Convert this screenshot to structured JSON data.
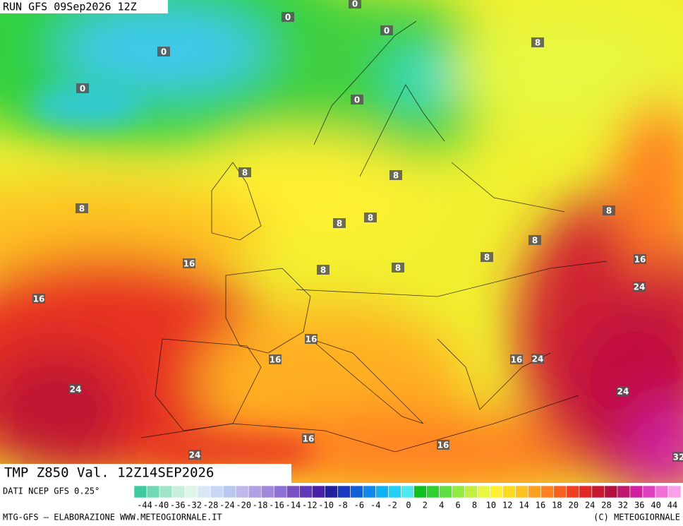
{
  "header": {
    "run": "RUN GFS 09Sep2026 12Z"
  },
  "map": {
    "contour_labels": [
      0,
      0,
      0,
      0,
      0,
      0,
      8,
      8,
      8,
      8,
      8,
      8,
      8,
      8,
      8,
      8,
      8,
      16,
      16,
      16,
      16,
      16,
      16,
      16,
      16,
      24,
      24,
      24,
      24,
      24,
      32
    ]
  },
  "footer": {
    "title": "TMP Z850 Val. 12Z14SEP2026",
    "source": "DATI NCEP GFS 0.25°",
    "credit_left": "MTG-GFS — ELABORAZIONE WWW.METEOGIORNALE.IT",
    "credit_right": "(C) METEOGIORNALE"
  },
  "legend": {
    "ticks": [
      -44,
      -40,
      -36,
      -32,
      -28,
      -24,
      -20,
      -18,
      -16,
      -14,
      -12,
      -10,
      -8,
      -6,
      -4,
      -2,
      0,
      2,
      4,
      6,
      8,
      10,
      12,
      14,
      16,
      18,
      20,
      24,
      28,
      32,
      36,
      40,
      44
    ],
    "colors": [
      "#3fc9a0",
      "#6fd8b4",
      "#9fe6c8",
      "#c7f0dc",
      "#dff5ea",
      "#d8e6f8",
      "#c8d8f4",
      "#b8c8ee",
      "#c0b8ec",
      "#b0a0e4",
      "#a088dc",
      "#9070d4",
      "#7850c4",
      "#6038b8",
      "#4820a8",
      "#2020a0",
      "#1838c0",
      "#1060d8",
      "#1088ec",
      "#10b0f4",
      "#20d0f8",
      "#50e8f0",
      "#10c020",
      "#30d030",
      "#60e040",
      "#90ec40",
      "#c0f040",
      "#e8f840",
      "#fff030",
      "#ffd820",
      "#ffc020",
      "#ffa020",
      "#ff8020",
      "#f86020",
      "#f04020",
      "#e02828",
      "#c81830",
      "#b01040",
      "#c01870",
      "#d020a0",
      "#e040c0",
      "#f070d8",
      "#f8a0e8"
    ]
  }
}
